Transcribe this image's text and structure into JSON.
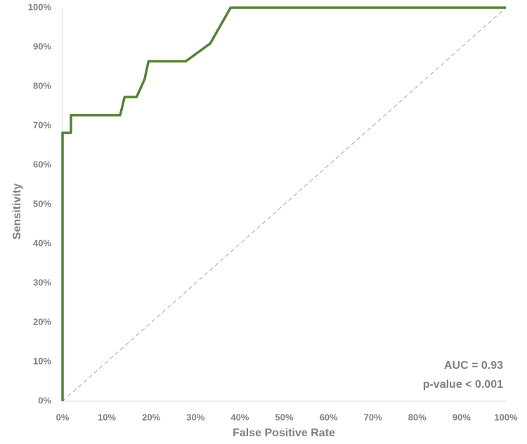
{
  "chart_data": {
    "type": "line",
    "x_label": "False Positive Rate",
    "y_label": "Sensitivity",
    "xlim": [
      0,
      100
    ],
    "ylim": [
      0,
      100
    ],
    "xticks": [
      {
        "value": 0,
        "label": "0%"
      },
      {
        "value": 10,
        "label": "10%"
      },
      {
        "value": 20,
        "label": "20%"
      },
      {
        "value": 30,
        "label": "30%"
      },
      {
        "value": 40,
        "label": "40%"
      },
      {
        "value": 50,
        "label": "50%"
      },
      {
        "value": 60,
        "label": "60%"
      },
      {
        "value": 70,
        "label": "70%"
      },
      {
        "value": 80,
        "label": "80%"
      },
      {
        "value": 90,
        "label": "90%"
      },
      {
        "value": 100,
        "label": "100%"
      }
    ],
    "yticks": [
      {
        "value": 0,
        "label": "0%"
      },
      {
        "value": 10,
        "label": "10%"
      },
      {
        "value": 20,
        "label": "20%"
      },
      {
        "value": 30,
        "label": "30%"
      },
      {
        "value": 40,
        "label": "40%"
      },
      {
        "value": 50,
        "label": "50%"
      },
      {
        "value": 60,
        "label": "60%"
      },
      {
        "value": 70,
        "label": "70%"
      },
      {
        "value": 80,
        "label": "80%"
      },
      {
        "value": 90,
        "label": "90%"
      },
      {
        "value": 100,
        "label": "100%"
      }
    ],
    "grid": false,
    "series": [
      {
        "color": "#548235",
        "dashed": false,
        "x": [
          0,
          0,
          1.9,
          1.9,
          13,
          14,
          16.7,
          18.5,
          19.4,
          27.8,
          33.3,
          37.9,
          100
        ],
        "values": [
          0,
          68.2,
          68.2,
          72.7,
          72.7,
          77.3,
          77.3,
          81.8,
          86.4,
          86.4,
          90.9,
          100,
          100
        ]
      },
      {
        "color": "#a6a6a6",
        "dashed": true,
        "x": [
          0,
          100
        ],
        "values": [
          0,
          100
        ]
      }
    ],
    "annotations": [
      "AUC = 0.93",
      "p-value < 0.001"
    ]
  }
}
